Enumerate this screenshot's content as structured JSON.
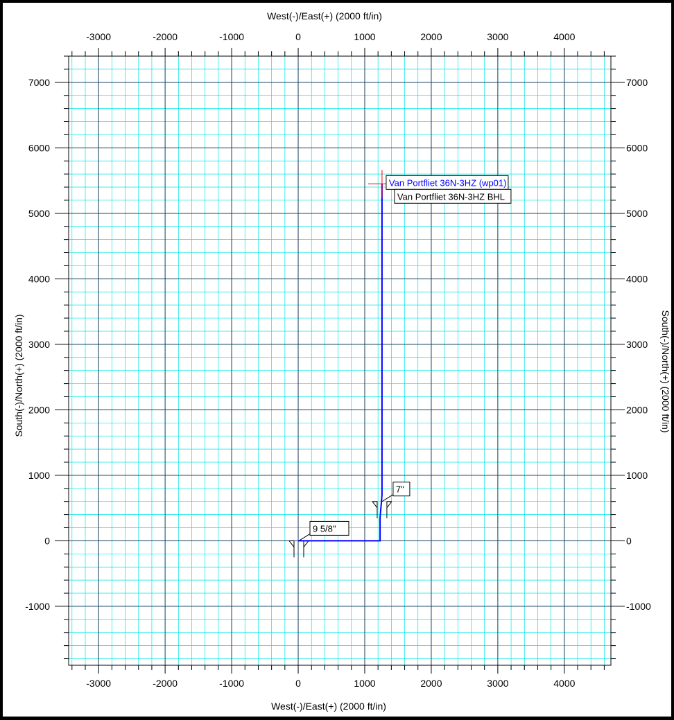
{
  "chart_data": {
    "type": "line",
    "x_axis_label": "West(-)/East(+) (2000 ft/in)",
    "y_axis_label": "South(-)/North(+) (2000 ft/in)",
    "xlim": [
      -3450,
      4700
    ],
    "ylim": [
      -1900,
      7400
    ],
    "x_ticks": [
      -3000,
      -2000,
      -1000,
      0,
      1000,
      2000,
      3000,
      4000
    ],
    "y_ticks": [
      -1000,
      0,
      1000,
      2000,
      3000,
      4000,
      5000,
      6000,
      7000
    ],
    "x_tick_labels": [
      "-3000",
      "-2000",
      "-1000",
      "0",
      "1000",
      "2000",
      "3000",
      "4000"
    ],
    "y_tick_labels": [
      "-1000",
      "0",
      "1000",
      "2000",
      "3000",
      "4000",
      "5000",
      "6000",
      "7000"
    ],
    "grid": true,
    "colors": {
      "background": "#ffffff",
      "grid_minor": "#00e5e5",
      "grid_major": "#1e3f5a",
      "well_path": "#0000ff",
      "target_cross": "#ff0000",
      "axis": "#000000"
    },
    "series": [
      {
        "name": "Van Portfliet 36N-3HZ (wp01)",
        "x": [
          0,
          1230,
          1230,
          1260,
          1260
        ],
        "y": [
          0,
          0,
          350,
          700,
          5450
        ]
      }
    ],
    "casing_points": [
      {
        "label": "9 5/8\"",
        "x": 10,
        "y": 0
      },
      {
        "label": "7\"",
        "x": 1260,
        "y": 600
      }
    ],
    "annotations": [
      {
        "text": "Van Portfliet 36N-3HZ (wp01)",
        "x": 1260,
        "y": 5450,
        "color": "#0000ff"
      },
      {
        "text": "Van Portfliet 36N-3HZ BHL",
        "x": 1260,
        "y": 5450,
        "color": "#000000"
      }
    ],
    "target": {
      "x": 1260,
      "y": 5450
    }
  }
}
